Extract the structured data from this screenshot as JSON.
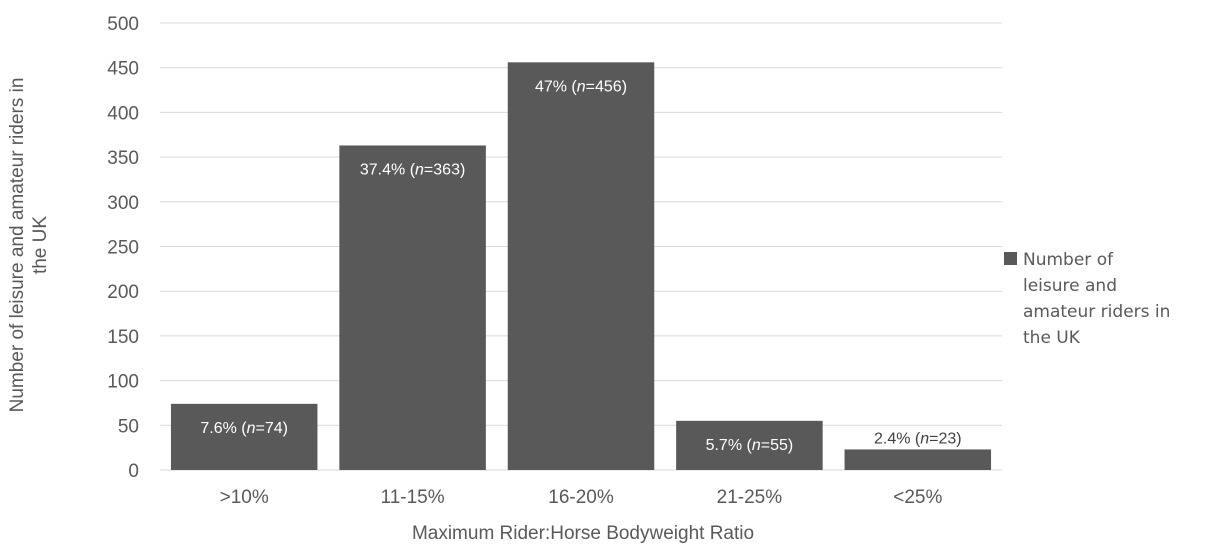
{
  "chart_data": {
    "type": "bar",
    "categories": [
      ">10%",
      "11-15%",
      "16-20%",
      "21-25%",
      "<25%"
    ],
    "series": [
      {
        "name": "Number of leisure and amateur riders in the UK",
        "values": [
          74,
          363,
          456,
          55,
          23
        ],
        "labels": [
          {
            "pct": "7.6% (",
            "n": "n",
            "rest": "=74)"
          },
          {
            "pct": "37.4% (",
            "n": "n",
            "rest": "=363)"
          },
          {
            "pct": "47% (",
            "n": "n",
            "rest": "=456)"
          },
          {
            "pct": "5.7% (",
            "n": "n",
            "rest": "=55)"
          },
          {
            "pct": "2.4% (",
            "n": "n",
            "rest": "=23)"
          }
        ]
      }
    ],
    "xlabel": "Maximum Rider:Horse Bodyweight Ratio",
    "ylabel_lines": [
      "Number of leisure and amateur riders in",
      "the UK"
    ],
    "ylim": [
      0,
      500
    ],
    "yticks": [
      0,
      50,
      100,
      150,
      200,
      250,
      300,
      350,
      400,
      450,
      500
    ],
    "grid": true,
    "legend_position": "right",
    "legend_lines": [
      "Number of",
      "leisure and",
      "amateur riders in",
      "the UK"
    ],
    "colors": {
      "bar": "#595959",
      "grid": "#d9d9d9",
      "axis_text": "#595959",
      "label_inside": "#ffffff",
      "label_outside": "#404040"
    }
  }
}
